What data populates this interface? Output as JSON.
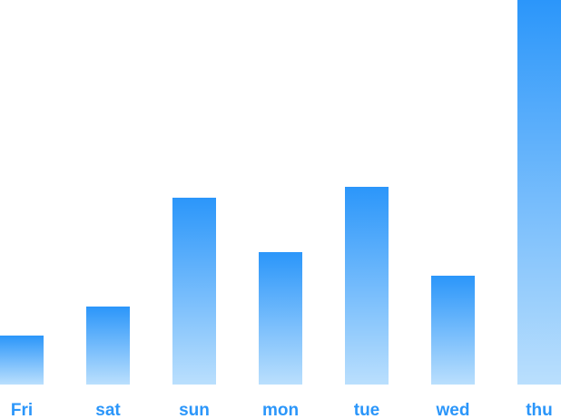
{
  "chart_data": {
    "type": "bar",
    "categories": [
      "Fri",
      "sat",
      "sun",
      "mon",
      "tue",
      "wed",
      "thu"
    ],
    "values": [
      54,
      86,
      206,
      146,
      218,
      120,
      424
    ],
    "ylim": [
      0,
      424
    ],
    "grid": false,
    "legend": "none",
    "bar_gradient_top": "#2B96FA",
    "bar_gradient_bottom": "#BADFFD",
    "label_color": "#2B96FA"
  }
}
